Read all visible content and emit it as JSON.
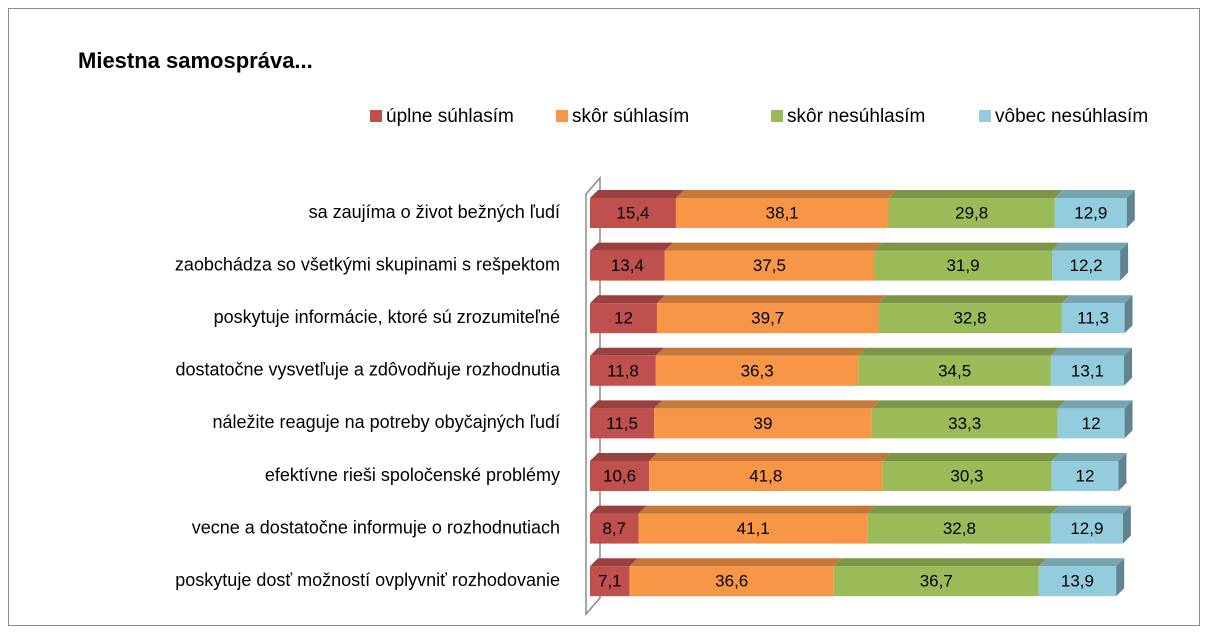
{
  "chart_data": {
    "type": "bar",
    "orientation": "horizontal",
    "stacked": true,
    "title": "Miestna samospráva...",
    "categories": [
      "sa zaujíma o život bežných ľudí",
      "zaobchádza so všetkými skupinami s rešpektom",
      "poskytuje informácie, ktoré sú zrozumiteľné",
      "dostatočne vysvetľuje a zdôvodňuje rozhodnutia",
      "náležite reaguje na potreby obyčajných ľudí",
      "efektívne rieši spoločenské problémy",
      "vecne a dostatočne informuje o rozhodnutiach",
      "poskytuje dosť možností ovplyvniť rozhodovanie"
    ],
    "series": [
      {
        "name": "úplne súhlasím",
        "color": "#c0504d",
        "values": [
          15.4,
          13.4,
          12,
          11.8,
          11.5,
          10.6,
          8.7,
          7.1
        ],
        "value_labels": [
          "15,4",
          "13,4",
          "12",
          "11,8",
          "11,5",
          "10,6",
          "8,7",
          "7,1"
        ]
      },
      {
        "name": "skôr súhlasím",
        "color": "#f79646",
        "values": [
          38.1,
          37.5,
          39.7,
          36.3,
          39,
          41.8,
          41.1,
          36.6
        ],
        "value_labels": [
          "38,1",
          "37,5",
          "39,7",
          "36,3",
          "39",
          "41,8",
          "41,1",
          "36,6"
        ]
      },
      {
        "name": "skôr nesúhlasím",
        "color": "#9bbb59",
        "values": [
          29.8,
          31.9,
          32.8,
          34.5,
          33.3,
          30.3,
          32.8,
          36.7
        ],
        "value_labels": [
          "29,8",
          "31,9",
          "32,8",
          "34,5",
          "33,3",
          "30,3",
          "32,8",
          "36,7"
        ]
      },
      {
        "name": "vôbec nesúhlasím",
        "color": "#93cddd",
        "values": [
          12.9,
          12.2,
          11.3,
          13.1,
          12,
          12,
          12.9,
          13.9
        ],
        "value_labels": [
          "12,9",
          "12,2",
          "11,3",
          "13,1",
          "12",
          "12",
          "12,9",
          "13,9"
        ]
      }
    ],
    "legend": "top"
  }
}
